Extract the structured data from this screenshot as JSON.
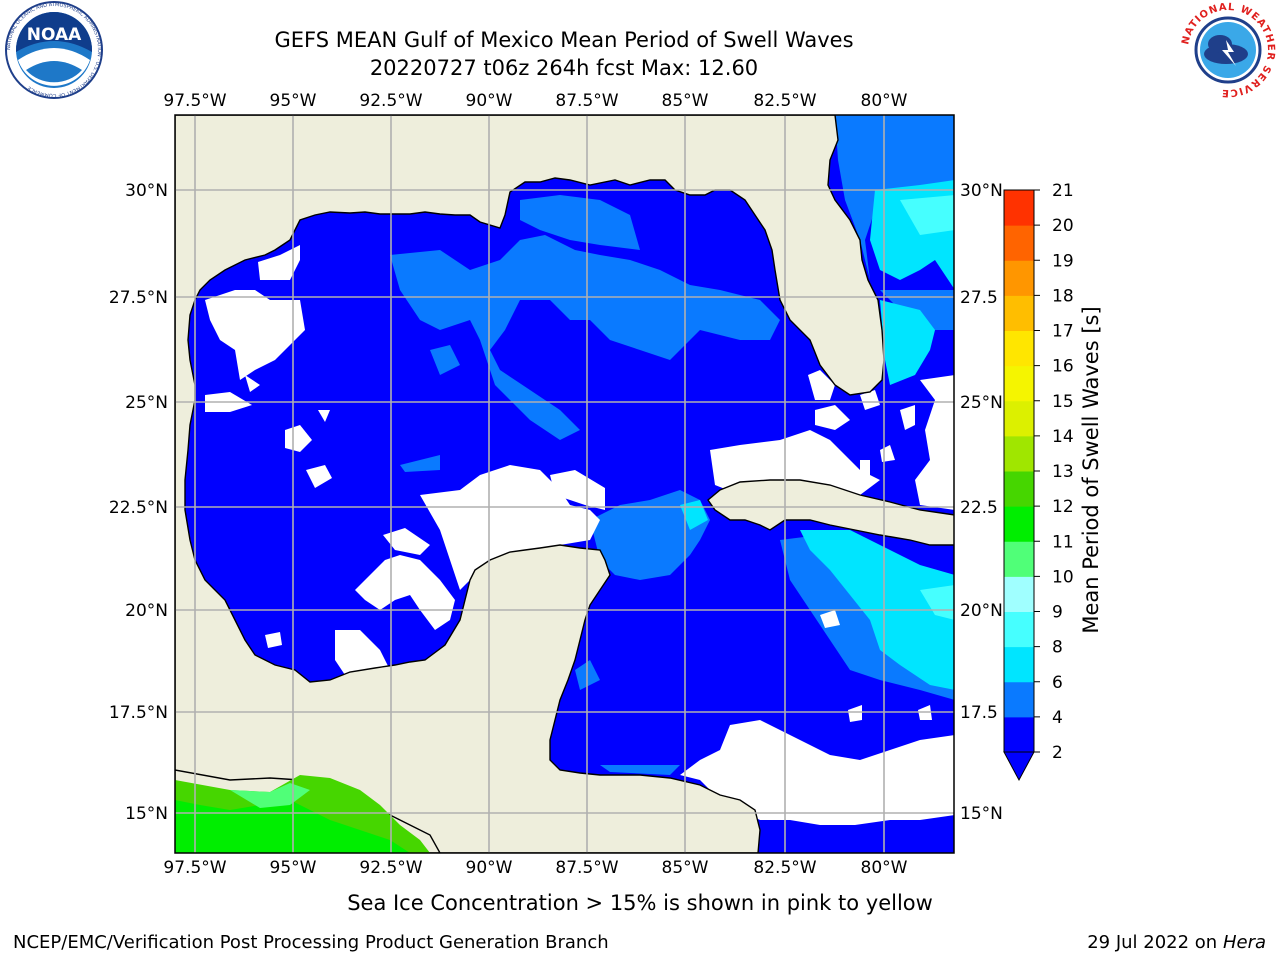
{
  "header": {
    "title": "GEFS MEAN Gulf of Mexico Mean Period of Swell Waves",
    "subtitle": "20220727 t06z 264h fcst   Max: 12.60"
  },
  "logos": {
    "left": "NOAA",
    "left_ring_text": "NATIONAL OCEANIC AND ATMOSPHERIC ADMINISTRATION · U.S. DEPARTMENT OF COMMERCE",
    "right_ring_text": "NATIONAL WEATHER SERVICE"
  },
  "map": {
    "lon_labels": [
      "97.5°W",
      "95°W",
      "92.5°W",
      "90°W",
      "87.5°W",
      "85°W",
      "82.5°W",
      "80°W"
    ],
    "lat_labels_left": [
      "30°N",
      "27.5°N",
      "25°N",
      "22.5°N",
      "20°N",
      "17.5°N",
      "15°N"
    ],
    "lat_labels_right": [
      "30°N",
      "27.5",
      "25°N",
      "22.5",
      "20°N",
      "17.5",
      "15°N"
    ],
    "colors": {
      "land": "#eeeedc",
      "no_data": "#ffffff",
      "grid": "#b0b0b0"
    }
  },
  "colorbar": {
    "label": "Mean Period of Swell Waves [s]",
    "ticks": [
      "2",
      "4",
      "6",
      "8",
      "9",
      "10",
      "11",
      "12",
      "13",
      "14",
      "15",
      "16",
      "17",
      "18",
      "19",
      "20",
      "21"
    ],
    "colors": [
      "#0000ff",
      "#0a7aff",
      "#00e5ff",
      "#46ffff",
      "#a0ffff",
      "#50ff78",
      "#00ee00",
      "#46d600",
      "#a0e600",
      "#dcf000",
      "#f5f500",
      "#ffe600",
      "#ffbe00",
      "#ff9600",
      "#ff6400",
      "#ff3200",
      "#ff0000"
    ]
  },
  "footer": {
    "ice_note": "Sea Ice Concentration > 15% is shown in pink to yellow",
    "credit": "NCEP/EMC/Verification Post Processing Product Generation Branch",
    "date": "29 Jul 2022 on ",
    "host": "Hera"
  }
}
